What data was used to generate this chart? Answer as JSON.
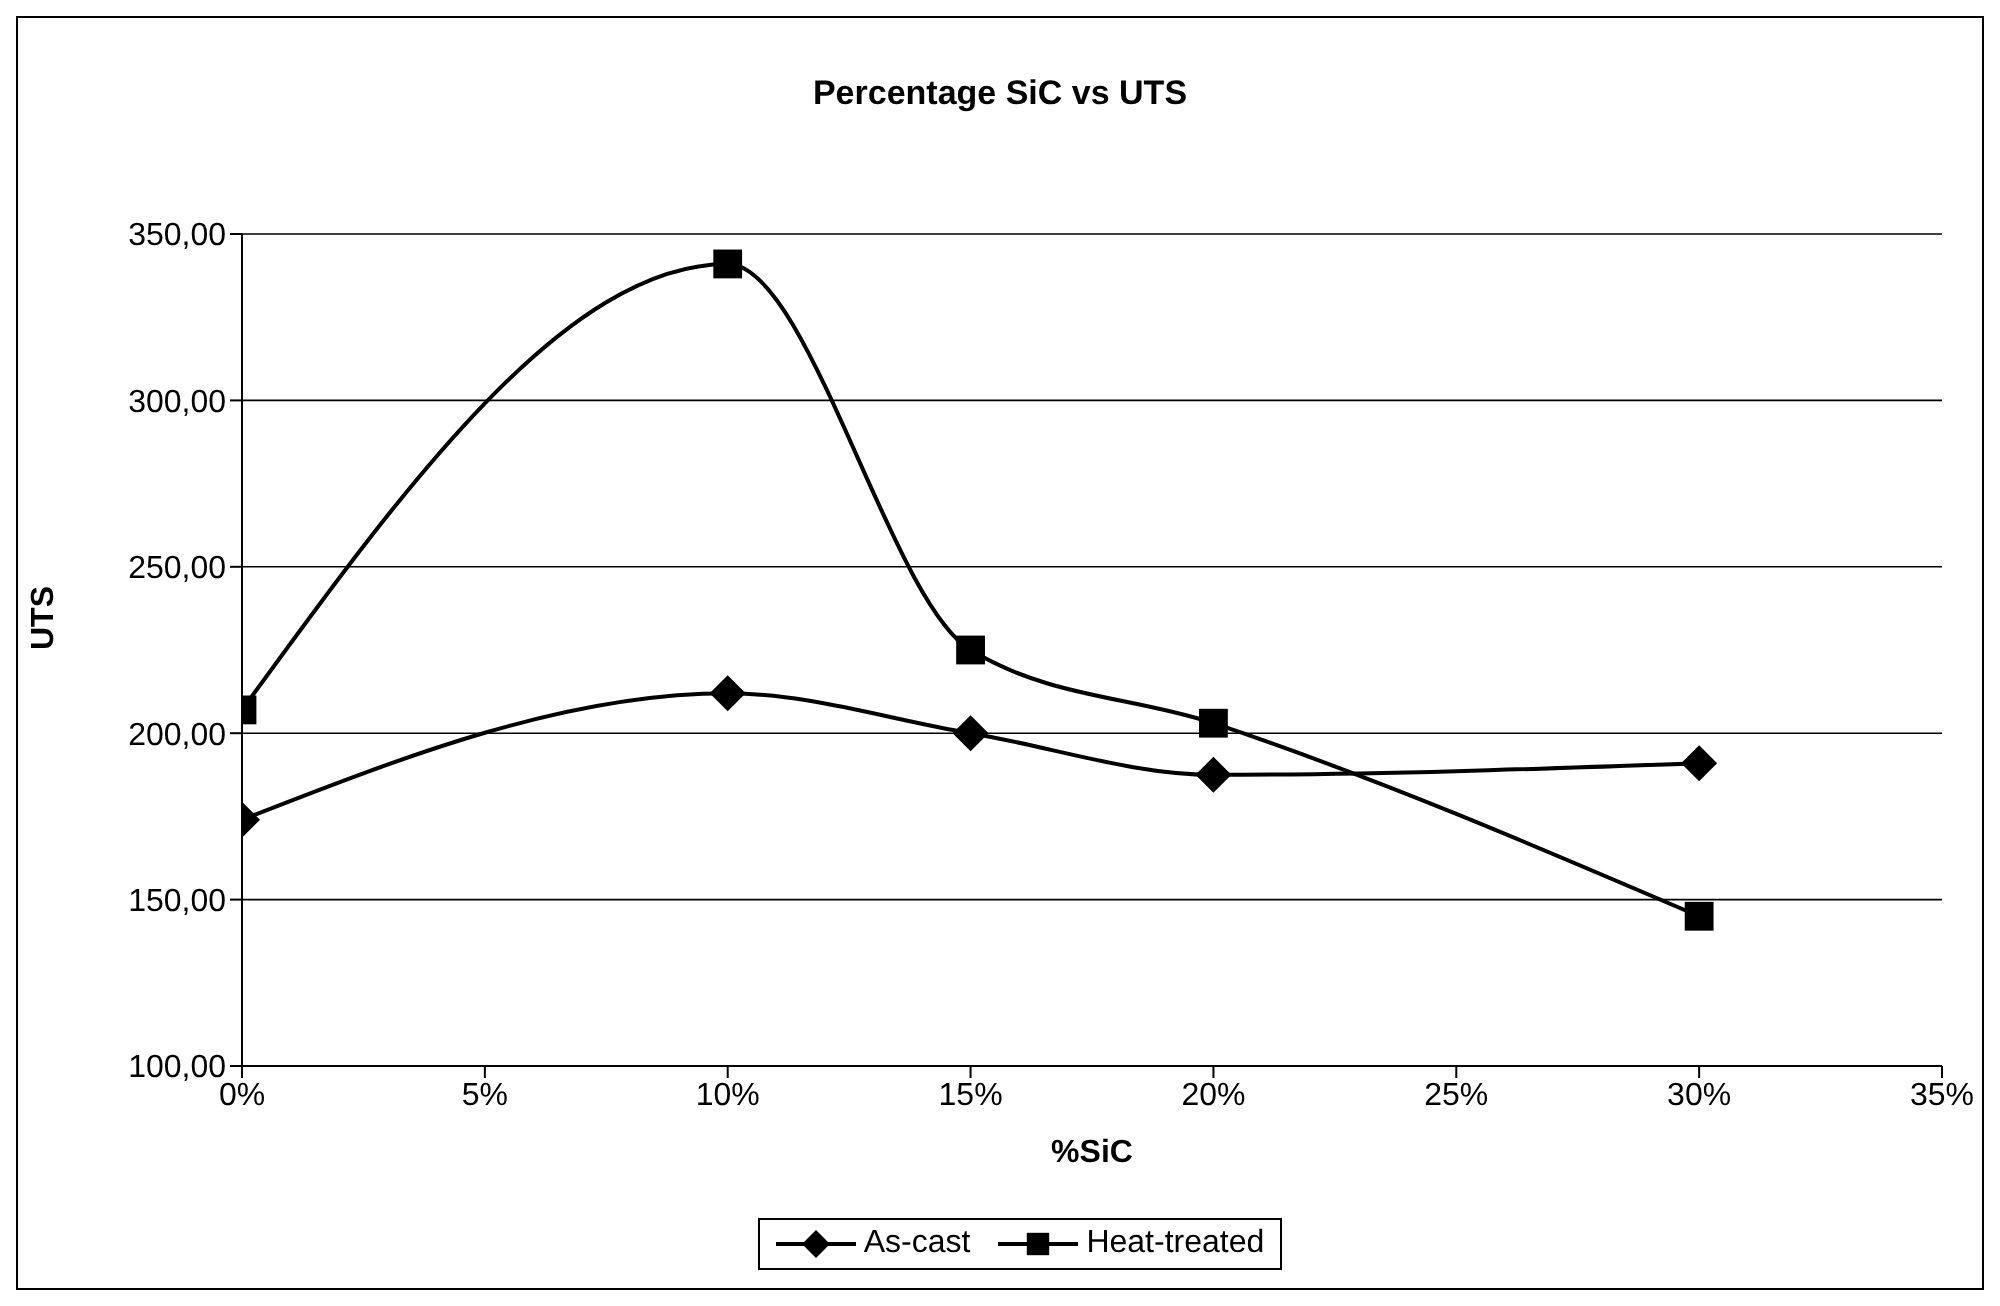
{
  "chart_data": {
    "type": "line",
    "title": "Percentage SiC vs UTS",
    "xlabel": "%SiC",
    "ylabel": "UTS",
    "x": [
      0,
      10,
      15,
      20,
      30
    ],
    "series": [
      {
        "name": "As-cast",
        "color": "#000000",
        "marker": "diamond",
        "values": [
          174,
          212,
          200,
          187.5,
          191
        ]
      },
      {
        "name": "Heat-treated",
        "color": "#000000",
        "marker": "square",
        "values": [
          207,
          341,
          225,
          203,
          145
        ]
      }
    ],
    "xlim": [
      0,
      35
    ],
    "xticks": [
      {
        "value": 0,
        "label": "0%"
      },
      {
        "value": 5,
        "label": "5%"
      },
      {
        "value": 10,
        "label": "10%"
      },
      {
        "value": 15,
        "label": "15%"
      },
      {
        "value": 20,
        "label": "20%"
      },
      {
        "value": 25,
        "label": "25%"
      },
      {
        "value": 30,
        "label": "30%"
      },
      {
        "value": 35,
        "label": "35%"
      }
    ],
    "ylim": [
      100,
      350
    ],
    "yticks": [
      {
        "value": 100,
        "label": "100,00"
      },
      {
        "value": 150,
        "label": "150,00"
      },
      {
        "value": 200,
        "label": "200,00"
      },
      {
        "value": 250,
        "label": "250,00"
      },
      {
        "value": 300,
        "label": "300,00"
      },
      {
        "value": 350,
        "label": "350,00"
      }
    ],
    "grid": "y",
    "legend": "bottom",
    "line_style": "solid"
  }
}
